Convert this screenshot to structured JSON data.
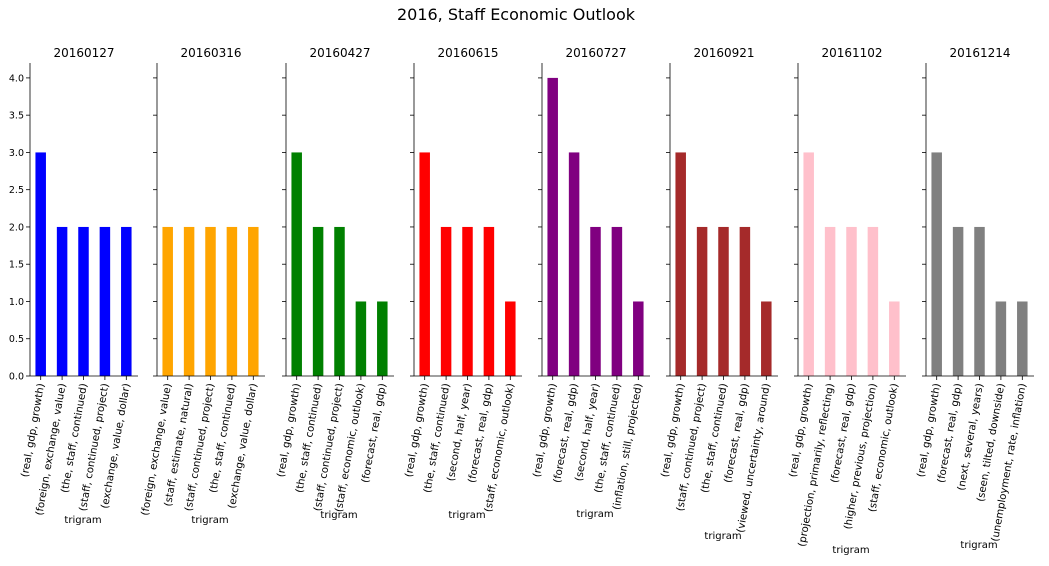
{
  "figure": {
    "title": "2016, Staff Economic Outlook"
  },
  "chart_data": [
    {
      "type": "bar",
      "title": "20160127",
      "xlabel": "trigram",
      "ylabel": "",
      "ylim": [
        0,
        4.2
      ],
      "color": "#0000ff",
      "categories": [
        "(real, gdp, growth)",
        "(foreign, exchange, value)",
        "(the, staff, continued)",
        "(staff, continued, project)",
        "(exchange, value, dollar)"
      ],
      "values": [
        3,
        2,
        2,
        2,
        2
      ]
    },
    {
      "type": "bar",
      "title": "20160316",
      "xlabel": "trigram",
      "ylabel": "",
      "ylim": [
        0,
        4.2
      ],
      "color": "#ffa500",
      "categories": [
        "(foreign, exchange, value)",
        "(staff, estimate, natural)",
        "(staff, continued, project)",
        "(the, staff, continued)",
        "(exchange, value, dollar)"
      ],
      "values": [
        2,
        2,
        2,
        2,
        2
      ]
    },
    {
      "type": "bar",
      "title": "20160427",
      "xlabel": "trigram",
      "ylabel": "",
      "ylim": [
        0,
        4.2
      ],
      "color": "#008000",
      "categories": [
        "(real, gdp, growth)",
        "(the, staff, continued)",
        "(staff, continued, project)",
        "(staff, economic, outlook)",
        "(forecast, real, gdp)"
      ],
      "values": [
        3,
        2,
        2,
        1,
        1
      ]
    },
    {
      "type": "bar",
      "title": "20160615",
      "xlabel": "trigram",
      "ylabel": "",
      "ylim": [
        0,
        4.2
      ],
      "color": "#ff0000",
      "categories": [
        "(real, gdp, growth)",
        "(the, staff, continued)",
        "(second, half, year)",
        "(forecast, real, gdp)",
        "(staff, economic, outlook)"
      ],
      "values": [
        3,
        2,
        2,
        2,
        1
      ]
    },
    {
      "type": "bar",
      "title": "20160727",
      "xlabel": "trigram",
      "ylabel": "",
      "ylim": [
        0,
        4.2
      ],
      "color": "#800080",
      "categories": [
        "(real, gdp, growth)",
        "(forecast, real, gdp)",
        "(second, half, year)",
        "(the, staff, continued)",
        "(inflation, still, projected)"
      ],
      "values": [
        4,
        3,
        2,
        2,
        1
      ]
    },
    {
      "type": "bar",
      "title": "20160921",
      "xlabel": "trigram",
      "ylabel": "",
      "ylim": [
        0,
        4.2
      ],
      "color": "#a52a2a",
      "categories": [
        "(real, gdp, growth)",
        "(staff, continued, project)",
        "(the, staff, continued)",
        "(forecast, real, gdp)",
        "(viewed, uncertainty, around)"
      ],
      "values": [
        3,
        2,
        2,
        2,
        1
      ]
    },
    {
      "type": "bar",
      "title": "20161102",
      "xlabel": "trigram",
      "ylabel": "",
      "ylim": [
        0,
        4.2
      ],
      "color": "#ffc0cb",
      "categories": [
        "(real, gdp, growth)",
        "(projection, primarily, reflecting)",
        "(forecast, real, gdp)",
        "(higher, previous, projection)",
        "(staff, economic, outlook)"
      ],
      "values": [
        3,
        2,
        2,
        2,
        1
      ]
    },
    {
      "type": "bar",
      "title": "20161214",
      "xlabel": "trigram",
      "ylabel": "",
      "ylim": [
        0,
        4.2
      ],
      "color": "#808080",
      "categories": [
        "(real, gdp, growth)",
        "(forecast, real, gdp)",
        "(next, several, years)",
        "(seen, tilted, downside)",
        "(unemployment, rate, inflation)"
      ],
      "values": [
        3,
        2,
        2,
        1,
        1
      ]
    }
  ],
  "y_ticks": [
    "0.0",
    "0.5",
    "1.0",
    "1.5",
    "2.0",
    "2.5",
    "3.0",
    "3.5",
    "4.0"
  ]
}
